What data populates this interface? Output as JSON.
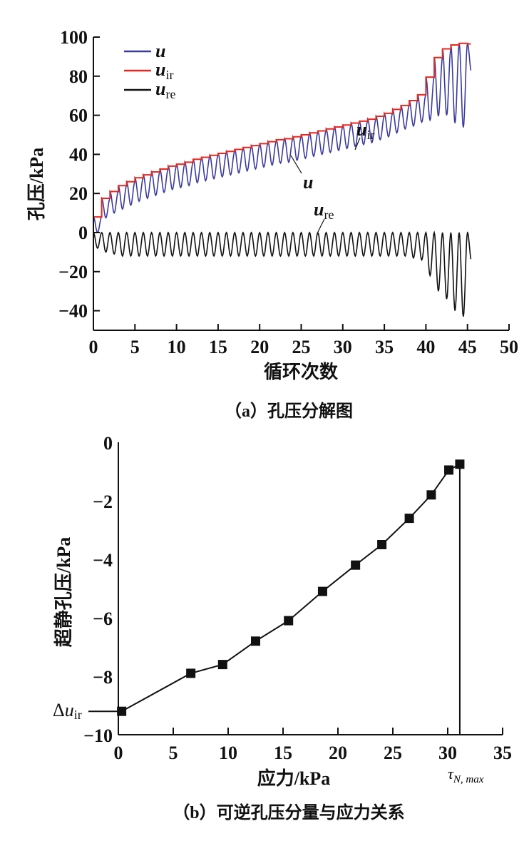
{
  "chart_data": [
    {
      "type": "line",
      "caption": "（a）孔压分解图",
      "xlabel": "循环次数",
      "ylabel": "孔压/kPa",
      "xlim": [
        0,
        50
      ],
      "ylim": [
        -50,
        100
      ],
      "xticks": [
        "0",
        "5",
        "10",
        "15",
        "20",
        "25",
        "30",
        "35",
        "40",
        "45",
        "50"
      ],
      "yticks": [
        "100",
        "80",
        "60",
        "40",
        "20",
        "0",
        "-20",
        "-40"
      ],
      "ytick_values": [
        100,
        80,
        60,
        40,
        20,
        0,
        -20,
        -40
      ],
      "xtick_values": [
        0,
        5,
        10,
        15,
        20,
        25,
        30,
        35,
        40,
        45,
        50
      ],
      "legend": {
        "placement": "top-left",
        "entries": [
          {
            "base": "u",
            "sub": "",
            "color": "#3b3a9e"
          },
          {
            "base": "u",
            "sub": "ir",
            "color": "#e8281e"
          },
          {
            "base": "u",
            "sub": "re",
            "color": "#111111"
          }
        ]
      },
      "annotations": [
        {
          "base": "u",
          "sub": "ir"
        },
        {
          "base": "u",
          "sub": ""
        },
        {
          "base": "u",
          "sub": "re"
        }
      ],
      "series_note": "u = u_ir + u_re; u_re oscillates each cycle between 0 and the per-cycle minimum",
      "cycles": [
        0,
        1,
        2,
        3,
        4,
        5,
        6,
        7,
        8,
        9,
        10,
        11,
        12,
        13,
        14,
        15,
        16,
        17,
        18,
        19,
        20,
        21,
        22,
        23,
        24,
        25,
        26,
        27,
        28,
        29,
        30,
        31,
        32,
        33,
        34,
        35,
        36,
        37,
        38,
        39,
        40,
        41,
        42,
        43,
        44,
        45
      ],
      "u_ir": [
        8,
        17.5,
        21,
        24,
        26,
        28,
        29.5,
        31,
        32.5,
        34,
        35,
        36,
        37.5,
        38.5,
        39.5,
        40.5,
        41.5,
        42.5,
        43.5,
        44.5,
        45.5,
        46.5,
        47.5,
        48,
        49,
        50,
        51,
        52,
        53,
        54,
        55,
        56,
        57,
        58,
        59.5,
        61,
        63,
        65,
        67.5,
        70.5,
        79.5,
        89.5,
        94,
        96,
        96.8,
        96.5
      ],
      "u_re_min": [
        -8,
        -10,
        -11,
        -12,
        -12,
        -12,
        -12,
        -12,
        -12,
        -12,
        -12,
        -12,
        -12,
        -12,
        -12,
        -12,
        -12,
        -12,
        -12,
        -12,
        -12,
        -12,
        -12,
        -12,
        -12,
        -12,
        -12,
        -12,
        -12,
        -12,
        -12,
        -12,
        -12,
        -12,
        -12,
        -12,
        -12,
        -12,
        -13,
        -14,
        -22,
        -30,
        -34,
        -40,
        -43,
        -15
      ],
      "x_end": 45.4,
      "colors": {
        "u": "#3b3a9e",
        "u_ir": "#e8281e",
        "u_re": "#111111"
      }
    },
    {
      "type": "line",
      "caption": "（b）可逆孔压分量与应力关系",
      "xlabel": "应力/kPa",
      "ylabel": "超静孔压/kPa",
      "xlim": [
        0,
        35
      ],
      "ylim": [
        -10,
        0
      ],
      "xticks": [
        "0",
        "5",
        "10",
        "15",
        "20",
        "25",
        "30",
        "35"
      ],
      "xtick_values": [
        0,
        5,
        10,
        15,
        20,
        25,
        30,
        35
      ],
      "yticks": [
        "0",
        "-2",
        "-4",
        "-6",
        "-8",
        "-10"
      ],
      "ytick_values": [
        0,
        -2,
        -4,
        -6,
        -8,
        -10
      ],
      "x": [
        0.3,
        6.6,
        9.5,
        12.5,
        15.5,
        18.6,
        21.6,
        24.0,
        26.5,
        28.5,
        30.1,
        31.1
      ],
      "y": [
        -9.2,
        -7.9,
        -7.6,
        -6.8,
        -6.1,
        -5.1,
        -4.2,
        -3.5,
        -2.6,
        -1.8,
        -0.95,
        -0.75
      ],
      "marker": "square",
      "annotations": {
        "delta_label": {
          "prefix": "Δ",
          "base": "u",
          "sub": "ir"
        },
        "tau_label": {
          "base": "τ",
          "sub": "N, max"
        }
      }
    }
  ]
}
